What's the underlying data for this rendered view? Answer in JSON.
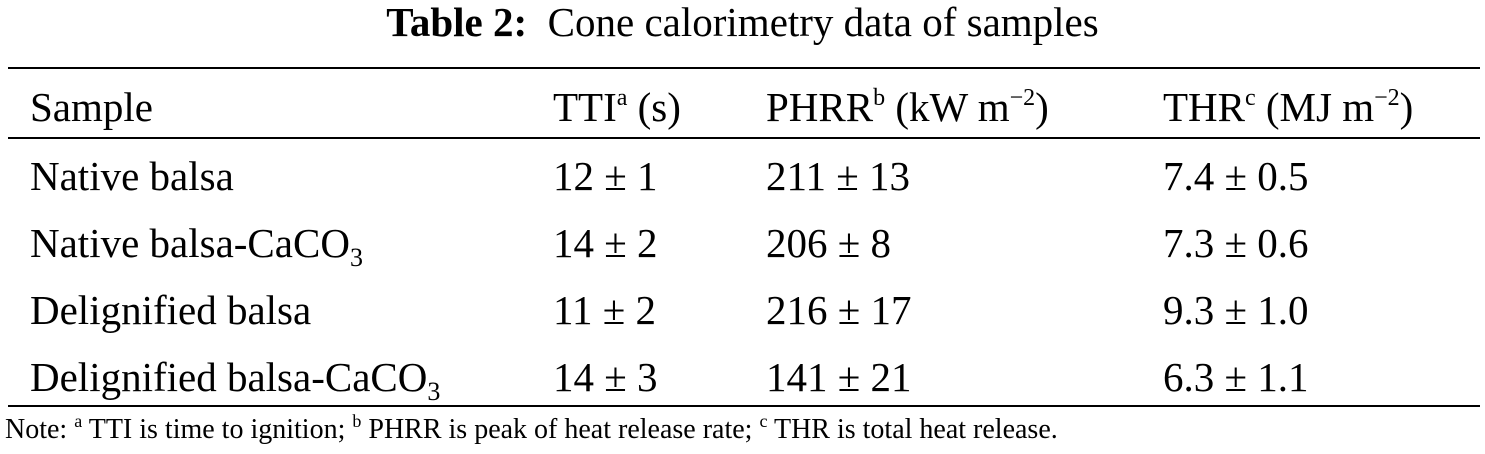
{
  "caption": {
    "label": "Table 2:",
    "text": "Cone calorimetry data of samples"
  },
  "table": {
    "headers": [
      {
        "text": "Sample",
        "sup": "",
        "suffix": ""
      },
      {
        "text": "TTI",
        "sup": "a",
        "suffix": " (s)"
      },
      {
        "text": "PHRR",
        "sup": "b",
        "suffix": " (kW m",
        "unit_exp": "−2",
        "close": ")"
      },
      {
        "text": "THR",
        "sup": "c",
        "suffix": " (MJ m",
        "unit_exp": "−2",
        "close": ")"
      }
    ],
    "rows": [
      {
        "sample": "Native balsa",
        "sample_sub": "",
        "tti": "12 ± 1",
        "phrr": "211 ± 13",
        "thr": "7.4 ± 0.5"
      },
      {
        "sample": "Native balsa-CaCO",
        "sample_sub": "3",
        "tti": "14 ± 2",
        "phrr": "206 ± 8",
        "thr": "7.3 ± 0.6"
      },
      {
        "sample": "Delignified balsa",
        "sample_sub": "",
        "tti": "11 ± 2",
        "phrr": "216 ± 17",
        "thr": "9.3 ± 1.0"
      },
      {
        "sample": "Delignified balsa-CaCO",
        "sample_sub": "3",
        "tti": "14 ± 3",
        "phrr": "141 ± 21",
        "thr": "6.3 ± 1.1"
      }
    ]
  },
  "note": {
    "prefix": "Note: ",
    "items": [
      {
        "sup": "a",
        "text": " TTI is time to ignition; "
      },
      {
        "sup": "b",
        "text": " PHRR is peak of heat release rate; "
      },
      {
        "sup": "c",
        "text": " THR is total heat release."
      }
    ]
  }
}
